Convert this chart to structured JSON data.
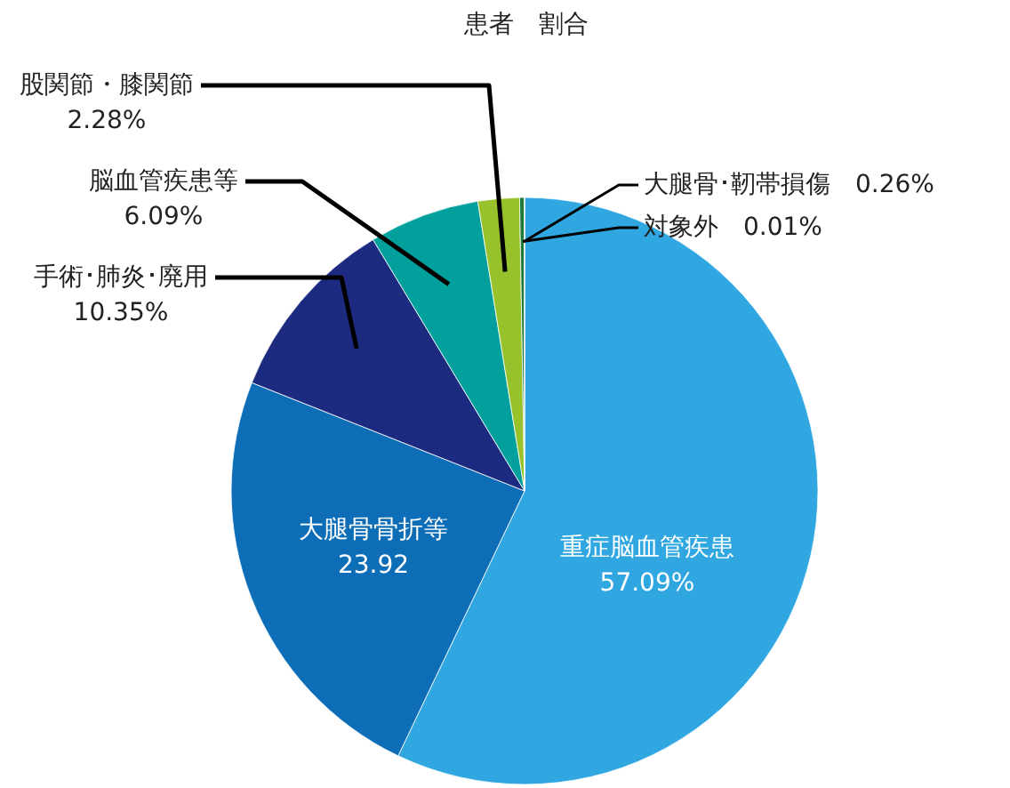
{
  "chart_data": {
    "type": "pie",
    "title": "患者　割合",
    "categories": [
      "重症脳血管疾患",
      "大腿骨骨折等",
      "手術･肺炎･廃用",
      "脳血管疾患等",
      "股関節・膝関節",
      "大腿骨･靭帯損傷",
      "対象外"
    ],
    "values": [
      57.09,
      23.92,
      10.35,
      6.09,
      2.28,
      0.26,
      0.01
    ],
    "value_labels": [
      "57.09%",
      "23.92",
      "10.35%",
      "6.09%",
      "2.28%",
      "0.26%",
      "0.01%"
    ],
    "colors": [
      "#30a7e1",
      "#0d6eb7",
      "#1c2a80",
      "#02a09d",
      "#98c22c",
      "#1f7a3a",
      "#0b4f2a"
    ]
  }
}
